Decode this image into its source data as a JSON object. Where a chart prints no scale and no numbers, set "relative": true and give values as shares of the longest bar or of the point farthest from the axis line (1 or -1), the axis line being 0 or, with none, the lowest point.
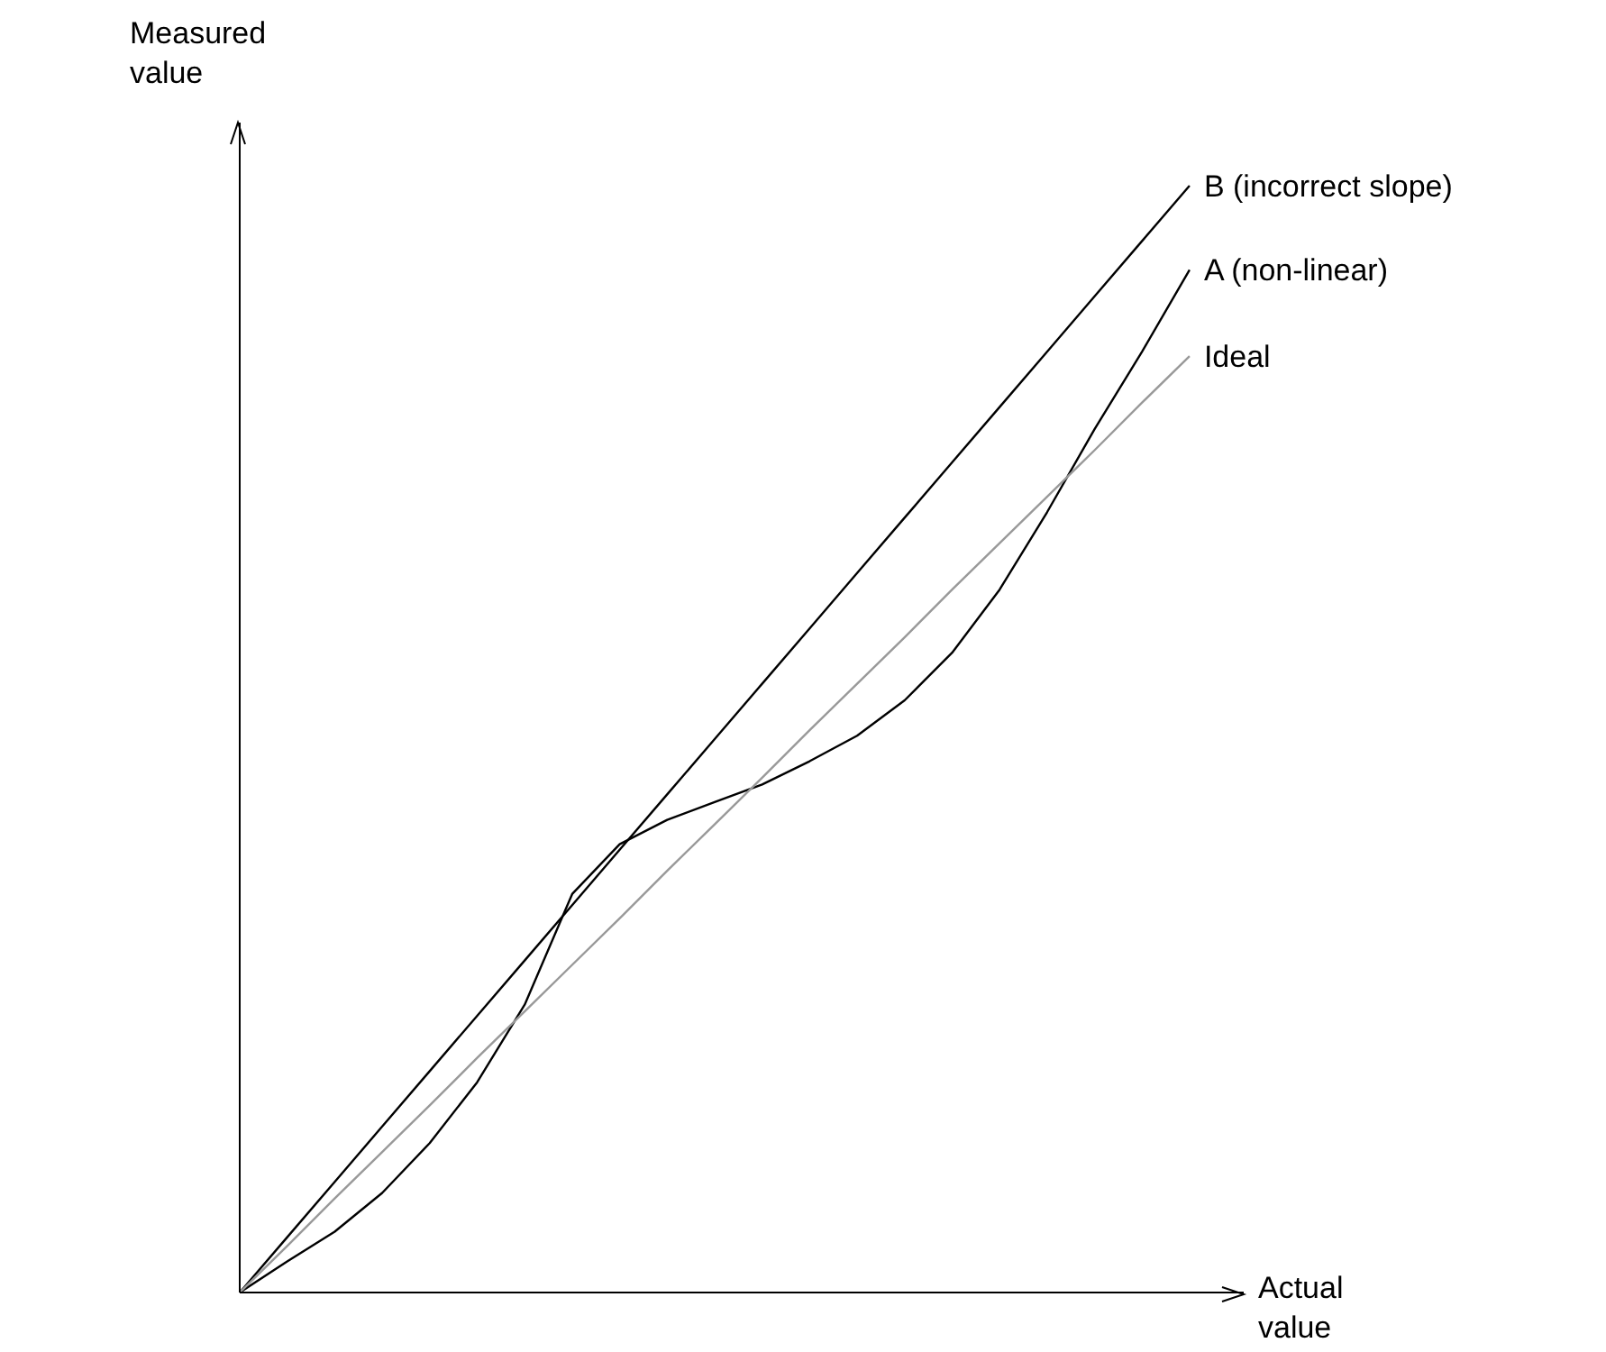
{
  "chart_data": {
    "type": "line",
    "relative": true,
    "xlabel": "Actual value",
    "ylabel": "Measured value",
    "line_style": "solid",
    "categories": [
      null,
      null,
      null,
      null,
      null,
      null,
      null,
      null,
      null,
      null,
      null,
      null,
      null,
      null,
      null,
      null,
      null,
      null,
      null,
      null,
      null
    ],
    "series": [
      {
        "name": "B (incorrect slope)",
        "color": "#000000",
        "values": [
          0,
          0.05,
          0.1,
          0.15,
          0.2,
          0.25,
          0.3,
          0.35,
          0.4,
          0.45,
          0.5,
          0.55,
          0.6,
          0.65,
          0.7,
          0.75,
          0.8,
          0.85,
          0.9,
          0.95,
          1
        ]
      },
      {
        "name": "A (non-linear)",
        "color": "#000000",
        "values": [
          0,
          0.028,
          0.055,
          0.09,
          0.135,
          0.19,
          0.26,
          0.36,
          0.405,
          0.427,
          0.443,
          0.459,
          0.48,
          0.503,
          0.535,
          0.578,
          0.635,
          0.705,
          0.78,
          0.85,
          0.924
        ]
      },
      {
        "name": "Ideal",
        "color": "#999999",
        "values": [
          0,
          0.042,
          0.085,
          0.127,
          0.169,
          0.212,
          0.254,
          0.296,
          0.338,
          0.381,
          0.423,
          0.465,
          0.508,
          0.55,
          0.592,
          0.635,
          0.677,
          0.719,
          0.761,
          0.804,
          0.846
        ]
      }
    ]
  }
}
